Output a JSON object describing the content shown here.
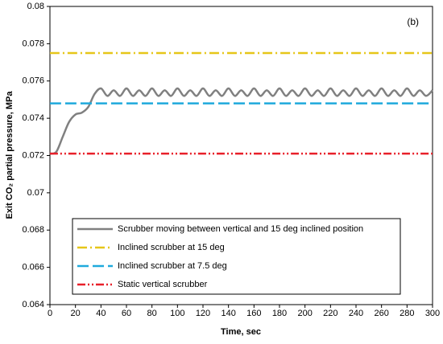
{
  "chart_data": {
    "type": "line",
    "annotation": "(b)",
    "xlabel": "Time, sec",
    "ylabel": "Exit CO₂ partial pressure, MPa",
    "xlim": [
      0,
      300
    ],
    "xticks": [
      0,
      20,
      40,
      60,
      80,
      100,
      120,
      140,
      160,
      180,
      200,
      220,
      240,
      260,
      280,
      300
    ],
    "ylim": [
      0.064,
      0.08
    ],
    "yticks": [
      0.064,
      0.066,
      0.068,
      0.07,
      0.072,
      0.074,
      0.076,
      0.078,
      0.08
    ],
    "grid": false,
    "legend": "lower center",
    "series": [
      {
        "name": "Scrubber moving between vertical and 15 deg inclined position",
        "color": "#808080",
        "linestyle": "solid",
        "x": [
          0,
          5,
          10,
          15,
          20,
          25,
          30,
          35,
          40,
          45,
          50,
          55,
          60,
          65,
          70,
          75,
          80,
          85,
          90,
          95,
          100,
          105,
          110,
          115,
          120,
          125,
          130,
          135,
          140,
          145,
          150,
          155,
          160,
          165,
          170,
          175,
          180,
          185,
          190,
          195,
          200,
          205,
          210,
          215,
          220,
          225,
          230,
          235,
          240,
          245,
          250,
          255,
          260,
          265,
          270,
          275,
          280,
          285,
          290,
          295,
          300
        ],
        "values": [
          0.0721,
          0.0722,
          0.073,
          0.0738,
          0.0742,
          0.0743,
          0.0746,
          0.0753,
          0.0756,
          0.0752,
          0.0755,
          0.0752,
          0.0756,
          0.0752,
          0.0755,
          0.0752,
          0.0756,
          0.0752,
          0.0755,
          0.0752,
          0.0756,
          0.0752,
          0.0755,
          0.0752,
          0.0756,
          0.0752,
          0.0755,
          0.0752,
          0.0756,
          0.0752,
          0.0755,
          0.0752,
          0.0756,
          0.0752,
          0.0755,
          0.0752,
          0.0756,
          0.0752,
          0.0755,
          0.0752,
          0.0756,
          0.0752,
          0.0755,
          0.0752,
          0.0756,
          0.0752,
          0.0755,
          0.0752,
          0.0756,
          0.0752,
          0.0755,
          0.0752,
          0.0756,
          0.0752,
          0.0755,
          0.0752,
          0.0756,
          0.0752,
          0.0755,
          0.0752,
          0.0755
        ]
      },
      {
        "name": "Inclined scrubber at 15 deg",
        "color": "#e6c619",
        "linestyle": "dashdot",
        "x": [
          0,
          300
        ],
        "values": [
          0.0775,
          0.0775
        ]
      },
      {
        "name": "Inclined scrubber at 7.5 deg",
        "color": "#1fa9dc",
        "linestyle": "dashed",
        "x": [
          0,
          300
        ],
        "values": [
          0.0748,
          0.0748
        ]
      },
      {
        "name": "Static vertical scrubber",
        "color": "#e8202a",
        "linestyle": "dashdotdot",
        "x": [
          0,
          300
        ],
        "values": [
          0.0721,
          0.0721
        ]
      }
    ]
  }
}
